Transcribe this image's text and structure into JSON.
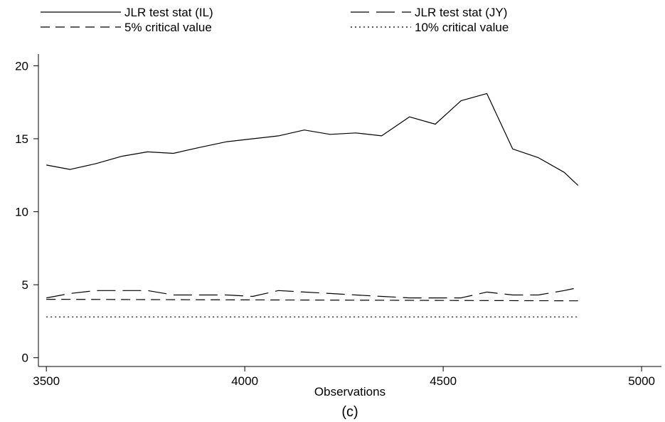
{
  "chart_data": {
    "type": "line",
    "title": "",
    "caption": "(c)",
    "xlabel": "Observations",
    "ylabel": "",
    "xlim": [
      3480,
      5050
    ],
    "ylim": [
      -0.6,
      20.8
    ],
    "x_ticks": [
      3500,
      4000,
      4500,
      5000
    ],
    "y_ticks": [
      0,
      5,
      10,
      15,
      20
    ],
    "grid": false,
    "legend_position": "top",
    "series": [
      {
        "name": "JLR test stat (IL)",
        "dash": "solid",
        "x": [
          3500,
          3560,
          3625,
          3690,
          3755,
          3820,
          3885,
          3955,
          4020,
          4085,
          4150,
          4215,
          4280,
          4345,
          4415,
          4480,
          4545,
          4610,
          4675,
          4740,
          4805,
          4840
        ],
        "y": [
          13.2,
          12.9,
          13.3,
          13.8,
          14.1,
          14.0,
          14.4,
          14.8,
          15.0,
          15.2,
          15.6,
          15.3,
          15.4,
          15.2,
          16.5,
          16.0,
          17.6,
          18.1,
          14.3,
          13.7,
          12.7,
          11.8
        ]
      },
      {
        "name": "JLR test stat (JY)",
        "dash": "longdash",
        "x": [
          3500,
          3560,
          3625,
          3690,
          3755,
          3820,
          3885,
          3955,
          4020,
          4085,
          4150,
          4215,
          4280,
          4345,
          4415,
          4480,
          4545,
          4610,
          4675,
          4740,
          4805,
          4840
        ],
        "y": [
          4.1,
          4.4,
          4.6,
          4.6,
          4.6,
          4.3,
          4.3,
          4.3,
          4.2,
          4.6,
          4.5,
          4.4,
          4.3,
          4.2,
          4.1,
          4.1,
          4.1,
          4.5,
          4.3,
          4.3,
          4.6,
          4.8
        ]
      },
      {
        "name": "5% critical value",
        "dash": "dash",
        "x": [
          3500,
          4840
        ],
        "y": [
          4.0,
          3.9
        ]
      },
      {
        "name": "10% critical value",
        "dash": "dot",
        "x": [
          3500,
          4840
        ],
        "y": [
          2.8,
          2.8
        ]
      }
    ]
  }
}
